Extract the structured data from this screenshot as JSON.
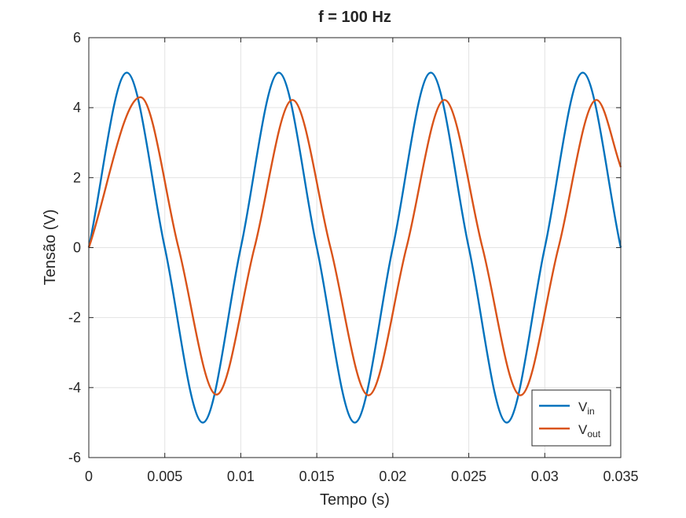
{
  "chart_data": {
    "type": "line",
    "title": "f = 100 Hz",
    "xlabel": "Tempo (s)",
    "ylabel": "Tensão (V)",
    "xlim": [
      0,
      0.035
    ],
    "ylim": [
      -6,
      6
    ],
    "xticks": [
      "0",
      "0.005",
      "0.01",
      "0.015",
      "0.02",
      "0.025",
      "0.03",
      "0.035"
    ],
    "yticks": [
      "-6",
      "-4",
      "-2",
      "0",
      "2",
      "4",
      "6"
    ],
    "grid": true,
    "legend_position": "bottom-right",
    "frequency_hz": 100,
    "series": [
      {
        "name": "V",
        "subscript": "in",
        "color": "#0072BD",
        "x": [
          0,
          0.0025,
          0.005,
          0.0075,
          0.01,
          0.0125,
          0.015,
          0.0175,
          0.02,
          0.0225,
          0.025,
          0.0275,
          0.03,
          0.0325,
          0.035
        ],
        "values": [
          0,
          5.0,
          0,
          -5.0,
          0,
          5.0,
          0,
          -5.0,
          0,
          5.0,
          0,
          -5.0,
          0,
          5.0,
          0
        ]
      },
      {
        "name": "V",
        "subscript": "out",
        "color": "#D95319",
        "x": [
          0,
          0.0034,
          0.0059,
          0.0084,
          0.0109,
          0.0134,
          0.0159,
          0.0184,
          0.0209,
          0.0234,
          0.0259,
          0.0284,
          0.0309,
          0.0334,
          0.035
        ],
        "values": [
          0,
          4.3,
          0,
          -4.2,
          0,
          4.22,
          0,
          -4.22,
          0,
          4.22,
          0,
          -4.22,
          0,
          4.22,
          2.3
        ]
      }
    ]
  }
}
